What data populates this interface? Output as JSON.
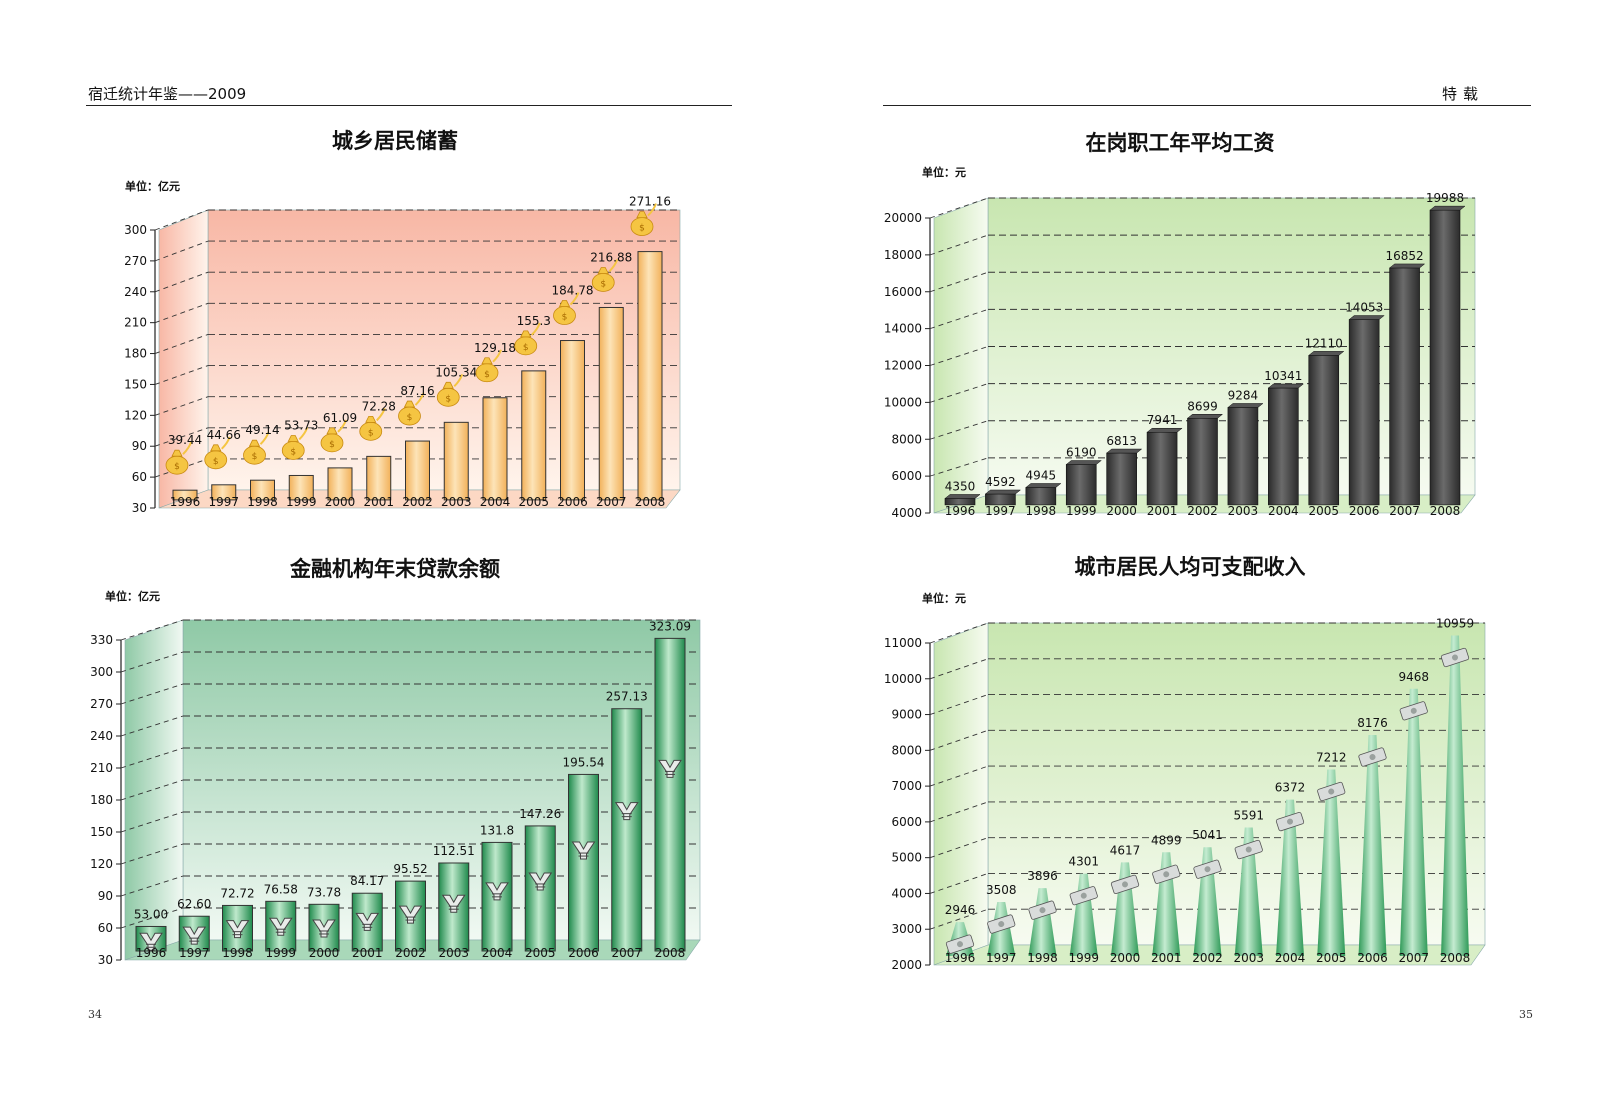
{
  "header": {
    "left_title": "宿迁统计年鉴——2009",
    "right_title": "特载"
  },
  "page_numbers": {
    "left": "34",
    "right": "35"
  },
  "chart_data": [
    {
      "id": "savings",
      "type": "bar",
      "title": "城乡居民储蓄",
      "unit_label": "单位：亿元",
      "categories": [
        "1996",
        "1997",
        "1998",
        "1999",
        "2000",
        "2001",
        "2002",
        "2003",
        "2004",
        "2005",
        "2006",
        "2007",
        "2008"
      ],
      "values": [
        39.44,
        44.66,
        49.14,
        53.73,
        61.09,
        72.28,
        87.16,
        105.34,
        129.18,
        155.3,
        184.78,
        216.88,
        271.16
      ],
      "value_labels": [
        "39.44",
        "44.66",
        "49.14",
        "53.73",
        "61.09",
        "72.28",
        "87.16",
        "105.34",
        "129.18",
        "155.3",
        "184.78",
        "216.88",
        "271.16"
      ],
      "ylim": [
        30,
        300
      ],
      "yticks": [
        30,
        60,
        90,
        120,
        150,
        180,
        210,
        240,
        270,
        300
      ],
      "grid": true,
      "icon": "money-bag-icon",
      "colors": {
        "bar": "#f2b15a",
        "bar_light": "#fde4b8",
        "bg": "#f8b7a5",
        "bg_light": "#fff4ec",
        "floor": "#fcd8c4"
      }
    },
    {
      "id": "wages",
      "type": "bar",
      "title": "在岗职工年平均工资",
      "unit_label": "单位：元",
      "categories": [
        "1996",
        "1997",
        "1998",
        "1999",
        "2000",
        "2001",
        "2002",
        "2003",
        "2004",
        "2005",
        "2006",
        "2007",
        "2008"
      ],
      "values": [
        4350,
        4592,
        4945,
        6190,
        6813,
        7941,
        8699,
        9284,
        10341,
        12110,
        14053,
        16852,
        19988
      ],
      "value_labels": [
        "4350",
        "4592",
        "4945",
        "6190",
        "6813",
        "7941",
        "8699",
        "9284",
        "10341",
        "12110",
        "14053",
        "16852",
        "19988"
      ],
      "ylim": [
        4000,
        20000
      ],
      "yticks": [
        4000,
        6000,
        8000,
        10000,
        12000,
        14000,
        16000,
        18000,
        20000
      ],
      "grid": true,
      "icon": "banknote-stack-icon",
      "colors": {
        "bar": "#2b2b2b",
        "bar_light": "#6b6b6b",
        "bg": "#c8e6b0",
        "bg_light": "#f6fbf1",
        "floor": "#d8eec6"
      }
    },
    {
      "id": "loans",
      "type": "bar",
      "title": "金融机构年末贷款余额",
      "unit_label": "单位：亿元",
      "categories": [
        "1996",
        "1997",
        "1998",
        "1999",
        "2000",
        "2001",
        "2002",
        "2003",
        "2004",
        "2005",
        "2006",
        "2007",
        "2008"
      ],
      "values": [
        53.0,
        62.6,
        72.72,
        76.58,
        73.78,
        84.17,
        95.52,
        112.51,
        131.8,
        147.26,
        195.54,
        257.13,
        323.09
      ],
      "value_labels": [
        "53.00",
        "62.60",
        "72.72",
        "76.58",
        "73.78",
        "84.17",
        "95.52",
        "112.51",
        "131.8",
        "147.26",
        "195.54",
        "257.13",
        "323.09"
      ],
      "ylim": [
        30,
        330
      ],
      "yticks": [
        30,
        60,
        90,
        120,
        150,
        180,
        210,
        240,
        270,
        300,
        330
      ],
      "grid": true,
      "icon": "yen-icon",
      "colors": {
        "bar": "#1f8a4c",
        "bar_light": "#bfe9cc",
        "bg": "#8fc9a6",
        "bg_light": "#f1f9f3",
        "floor": "#a9d8b9"
      }
    },
    {
      "id": "income",
      "type": "bar",
      "title": "城市居民人均可支配收入",
      "unit_label": "单位：元",
      "categories": [
        "1996",
        "1997",
        "1998",
        "1999",
        "2000",
        "2001",
        "2002",
        "2003",
        "2004",
        "2005",
        "2006",
        "2007",
        "2008"
      ],
      "values": [
        2946,
        3508,
        3896,
        4301,
        4617,
        4899,
        5041,
        5591,
        6372,
        7212,
        8176,
        9468,
        10959
      ],
      "value_labels": [
        "2946",
        "3508",
        "3896",
        "4301",
        "4617",
        "4899",
        "5041",
        "5591",
        "6372",
        "7212",
        "8176",
        "9468",
        "10959"
      ],
      "ylim": [
        2000,
        11000
      ],
      "yticks": [
        2000,
        3000,
        4000,
        5000,
        6000,
        7000,
        8000,
        9000,
        10000,
        11000
      ],
      "grid": true,
      "icon": "banknote-icon",
      "colors": {
        "bar": "#2f9a58",
        "bar_light": "#c5ecd1",
        "bg": "#c8e6b0",
        "bg_light": "#f7fbf1",
        "floor": "#d8eec6"
      }
    }
  ]
}
